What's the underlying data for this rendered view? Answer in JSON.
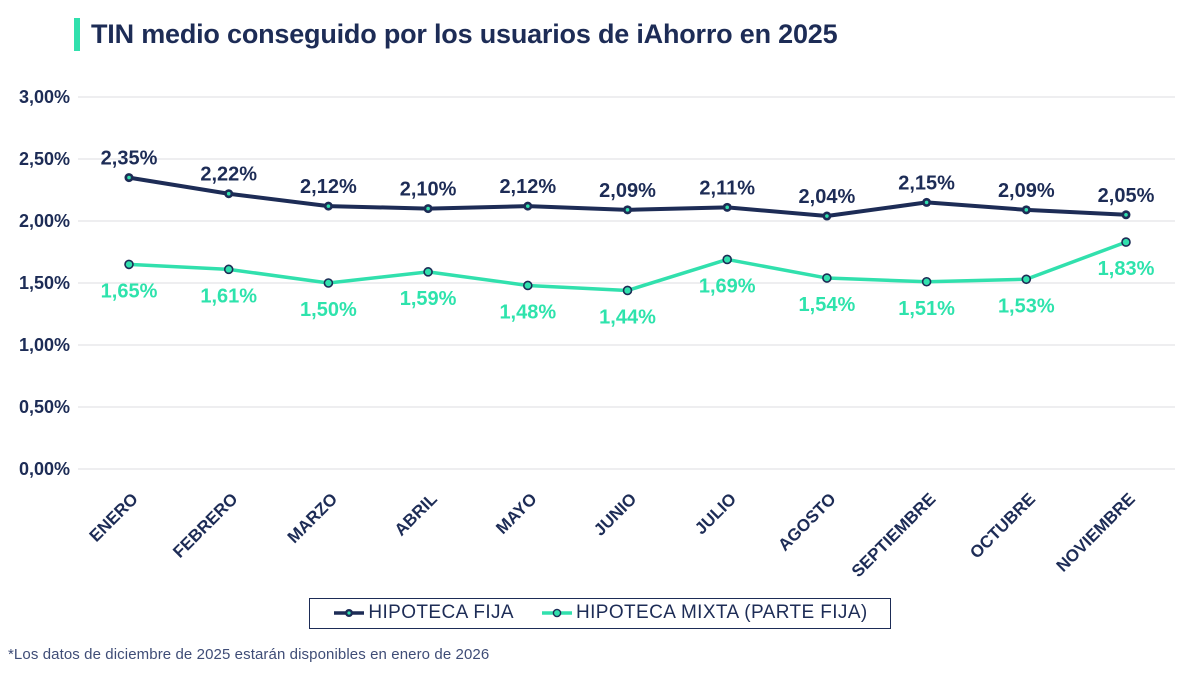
{
  "header": {
    "title": "TIN medio conseguido por los usuarios de iAhorro en 2025",
    "accent_color": "#31e0ad"
  },
  "chart_data": {
    "type": "line",
    "title": "TIN medio conseguido por los usuarios de iAhorro en 2025",
    "categories": [
      "ENERO",
      "FEBRERO",
      "MARZO",
      "ABRIL",
      "MAYO",
      "JUNIO",
      "JULIO",
      "AGOSTO",
      "SEPTIEMBRE",
      "OCTUBRE",
      "NOVIEMBRE"
    ],
    "series": [
      {
        "name": "HIPOTECA FIJA",
        "color": "#1d2c56",
        "values": [
          2.35,
          2.22,
          2.12,
          2.1,
          2.12,
          2.09,
          2.11,
          2.04,
          2.15,
          2.09,
          2.05
        ],
        "labels": [
          "2,35%",
          "2,22%",
          "2,12%",
          "2,10%",
          "2,12%",
          "2,09%",
          "2,11%",
          "2,04%",
          "2,15%",
          "2,09%",
          "2,05%"
        ],
        "label_position": "above",
        "label_color": "#1d2c56",
        "marker": {
          "fill": "#1d2c56",
          "center": "#31e0ad"
        }
      },
      {
        "name": "HIPOTECA MIXTA (PARTE FIJA)",
        "color": "#31e0ad",
        "values": [
          1.65,
          1.61,
          1.5,
          1.59,
          1.48,
          1.44,
          1.69,
          1.54,
          1.51,
          1.53,
          1.83
        ],
        "labels": [
          "1,65%",
          "1,61%",
          "1,50%",
          "1,59%",
          "1,48%",
          "1,44%",
          "1,69%",
          "1,54%",
          "1,51%",
          "1,53%",
          "1,83%"
        ],
        "label_position": "below",
        "label_color": "#2ee3ac",
        "marker": {
          "fill": "#31e0ad",
          "stroke": "#1d2c56"
        }
      }
    ],
    "y_tick_values": [
      3.0,
      2.5,
      2.0,
      1.5,
      1.0,
      0.5,
      0.0
    ],
    "y_tick_labels": [
      "3,00%",
      "2,50%",
      "2,00%",
      "1,50%",
      "1,00%",
      "0,50%",
      "0,00%"
    ],
    "ylim": [
      0,
      3
    ],
    "grid": true,
    "legend_position": "bottom"
  },
  "footnote": "*Los datos de diciembre de 2025 estarán disponibles en enero de 2026"
}
